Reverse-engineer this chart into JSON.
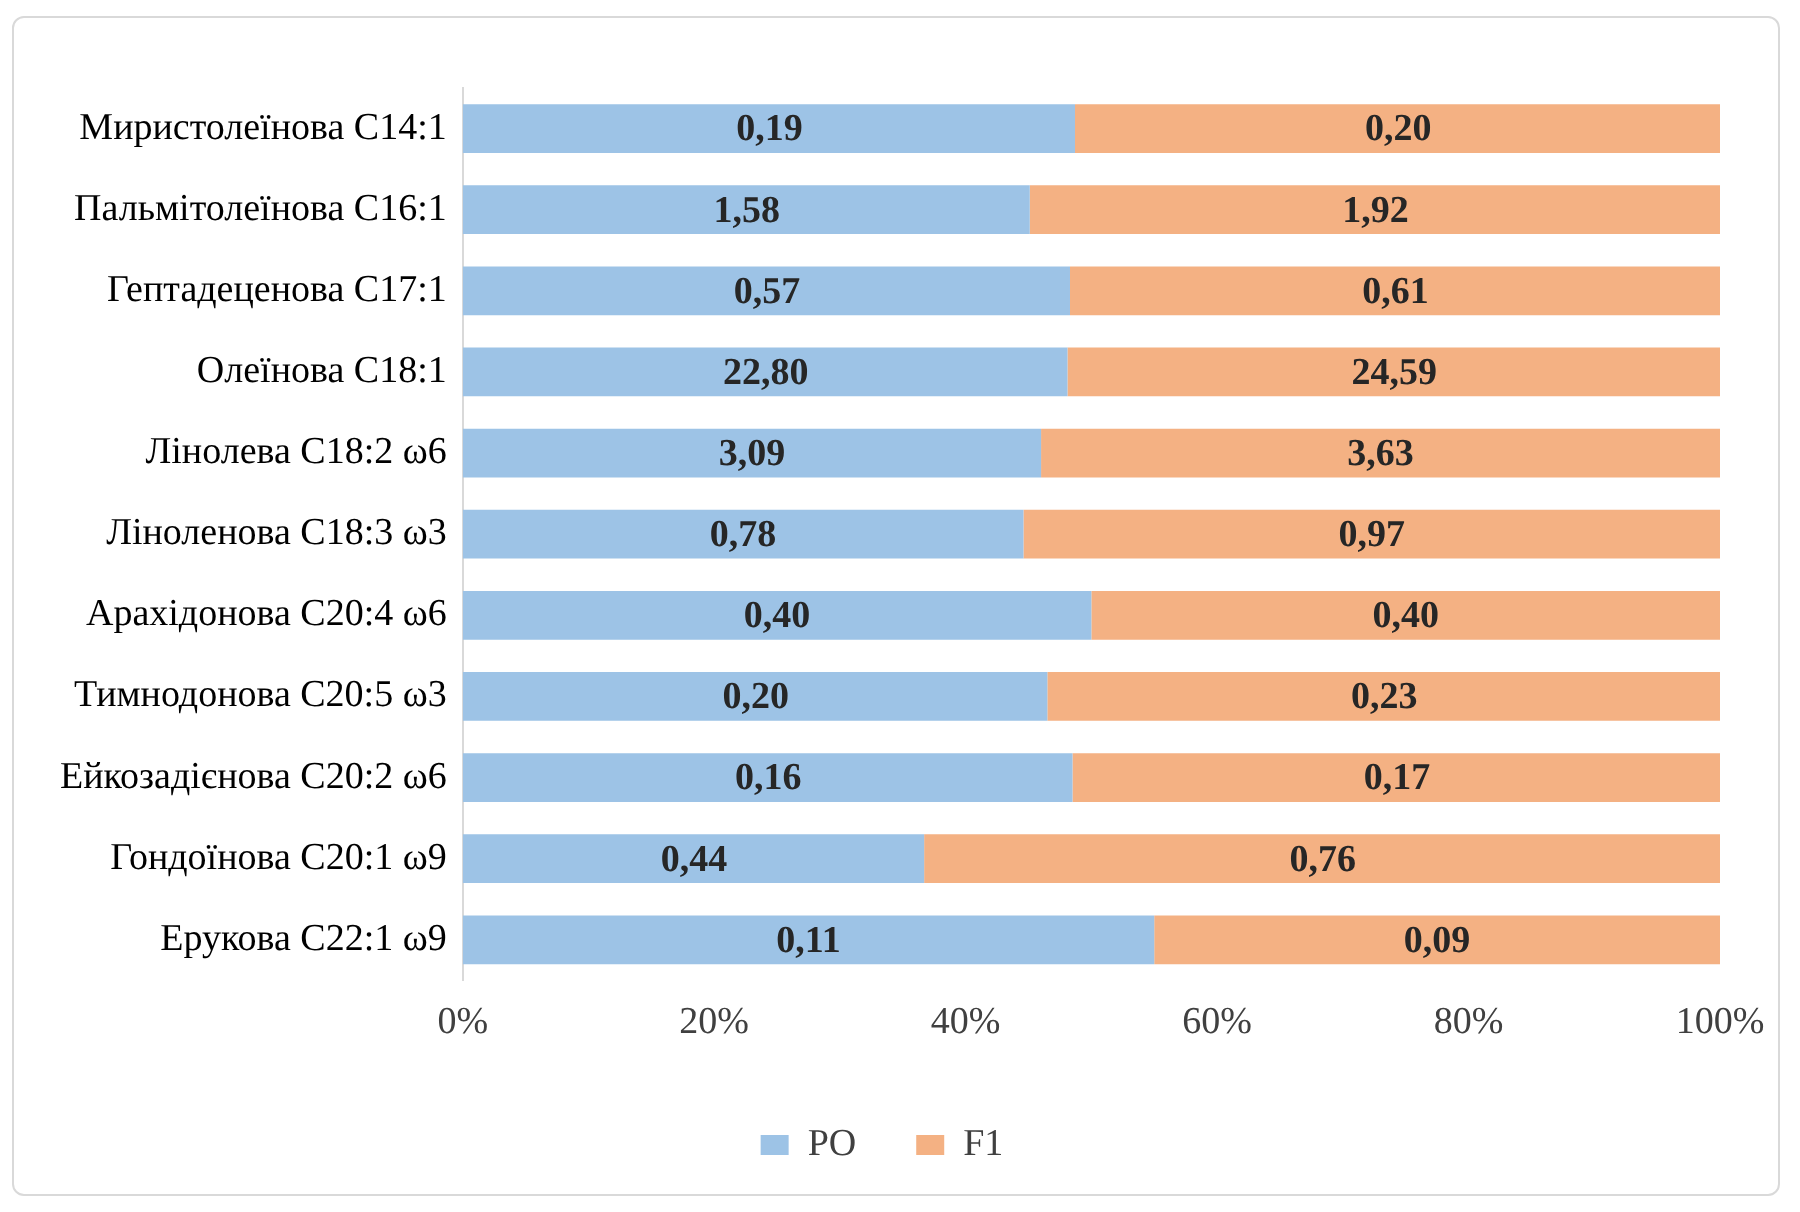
{
  "chart_data": {
    "type": "bar",
    "orientation": "horizontal",
    "stacked": true,
    "categories": [
      "Миристолеїнова С14:1",
      "Пальмітолеїнова С16:1",
      "Гептадеценова С17:1",
      "Олеїнова С18:1",
      "Лінолева С18:2 ω6",
      "Ліноленова С18:3 ω3",
      "Арахідонова С20:4 ω6",
      "Тимнодонова С20:5 ω3",
      "Ейкозадієнова С20:2 ω6",
      "Гондоїнова С20:1 ω9",
      "Ерукова С22:1 ω9"
    ],
    "series": [
      {
        "name": "PO",
        "color": "#9dc3e6",
        "values": [
          48.7,
          45.1,
          48.3,
          48.1,
          46.0,
          44.6,
          50,
          46.5,
          48.5,
          36.7,
          55
        ]
      },
      {
        "name": "F1",
        "color": "#f4b183",
        "values": [
          51.3,
          54.9,
          51.7,
          51.9,
          54.0,
          55.4,
          50,
          53.5,
          51.5,
          63.3,
          45
        ]
      }
    ],
    "annotations": [
      {
        "text": "0,19",
        "x": 24.4,
        "y": "Миристолеїнова С14:1"
      },
      {
        "text": "0,20",
        "x": 74.4,
        "y": "Миристолеїнова С14:1"
      },
      {
        "text": "1,58",
        "x": 22.6,
        "y": "Пальмітолеїнова С16:1"
      },
      {
        "text": "1,92",
        "x": 72.6,
        "y": "Пальмітолеїнова С16:1"
      },
      {
        "text": "0,57",
        "x": 24.2,
        "y": "Гептадеценова С17:1"
      },
      {
        "text": "0,61",
        "x": 74.2,
        "y": "Гептадеценова С17:1"
      },
      {
        "text": "22,80",
        "x": 24.1,
        "y": "Олеїнова С18:1"
      },
      {
        "text": "24,59",
        "x": 74.1,
        "y": "Олеїнова С18:1"
      },
      {
        "text": "3,09",
        "x": 23,
        "y": "Лінолева С18:2 ω6"
      },
      {
        "text": "3,63",
        "x": 73,
        "y": "Лінолева С18:2 ω6"
      },
      {
        "text": "0,78",
        "x": 22.3,
        "y": "Ліноленова С18:3 ω3"
      },
      {
        "text": "0,97",
        "x": 72.3,
        "y": "Ліноленова С18:3 ω3"
      },
      {
        "text": "0,40",
        "x": 25,
        "y": "Арахідонова С20:4 ω6"
      },
      {
        "text": "0,40",
        "x": 75,
        "y": "Арахідонова С20:4 ω6"
      },
      {
        "text": "0,20",
        "x": 23.3,
        "y": "Тимнодонова С20:5 ω3"
      },
      {
        "text": "0,23",
        "x": 73.3,
        "y": "Тимнодонова С20:5 ω3"
      },
      {
        "text": "0,16",
        "x": 24.3,
        "y": "Ейкозадієнова С20:2 ω6"
      },
      {
        "text": "0,17",
        "x": 74.3,
        "y": "Ейкозадієнова С20:2 ω6"
      },
      {
        "text": "0,44",
        "x": 18.4,
        "y": "Гондоїнова С20:1 ω9"
      },
      {
        "text": "0,76",
        "x": 68.4,
        "y": "Гондоїнова С20:1 ω9"
      },
      {
        "text": "0,11",
        "x": 27.5,
        "y": "Ерукова С22:1 ω9"
      },
      {
        "text": "0,09",
        "x": 77.5,
        "y": "Ерукова С22:1 ω9"
      }
    ],
    "xlim": [
      0,
      100
    ],
    "xticks": [
      {
        "value": 0,
        "label": "0%"
      },
      {
        "value": 20,
        "label": "20%"
      },
      {
        "value": 40,
        "label": "40%"
      },
      {
        "value": 60,
        "label": "60%"
      },
      {
        "value": 80,
        "label": "80%"
      },
      {
        "value": 100,
        "label": "100%"
      }
    ],
    "legend": "bottom"
  }
}
